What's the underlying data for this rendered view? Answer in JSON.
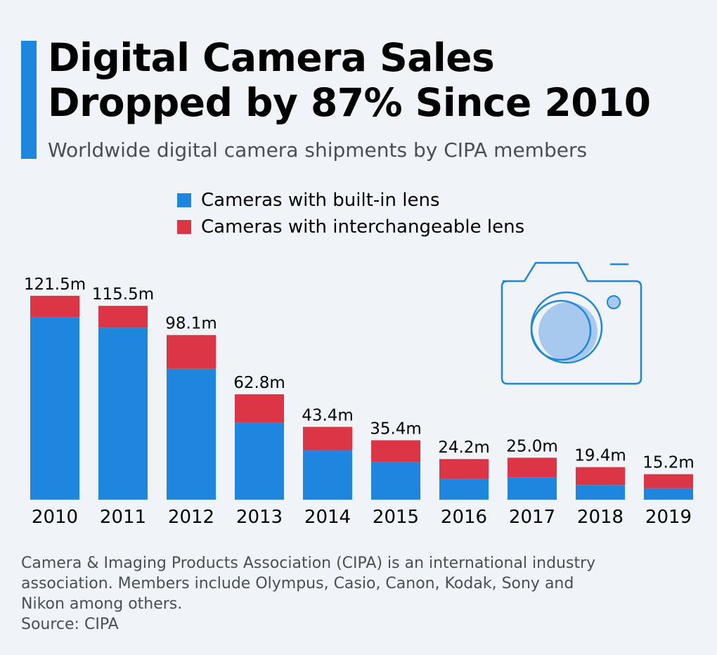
{
  "title_line1": "Digital Camera Sales",
  "title_line2": "Dropped by 87% Since 2010",
  "subtitle": "Worldwide digital camera shipments by CIPA members",
  "colors": {
    "builtin": "#1f86df",
    "interchangeable": "#dc3545",
    "accent": "#1f86df"
  },
  "icon": "camera-icon",
  "footnote_line1": "Camera & Imaging Products Association (CIPA) is an international industry",
  "footnote_line2": "association. Members include Olympus, Casio, Canon, Kodak, Sony and",
  "footnote_line3": "Nikon among others.",
  "source": "Source: CIPA",
  "chart_data": {
    "type": "bar",
    "stacked": true,
    "categories": [
      "2010",
      "2011",
      "2012",
      "2013",
      "2014",
      "2015",
      "2016",
      "2017",
      "2018",
      "2019"
    ],
    "series": [
      {
        "name": "Cameras with built-in lens",
        "values": [
          108.6,
          102.5,
          78.0,
          45.8,
          29.5,
          22.3,
          12.4,
          13.3,
          8.7,
          6.8
        ]
      },
      {
        "name": "Cameras with interchangeable lens",
        "values": [
          12.9,
          13.0,
          20.1,
          17.0,
          13.9,
          13.1,
          11.8,
          11.7,
          10.7,
          8.4
        ]
      }
    ],
    "total_labels": [
      "121.5m",
      "115.5m",
      "98.1m",
      "62.8m",
      "43.4m",
      "35.4m",
      "24.2m",
      "25.0m",
      "19.4m",
      "15.2m"
    ],
    "ylim": [
      0,
      130
    ],
    "grid": false,
    "legend_position": "top"
  }
}
